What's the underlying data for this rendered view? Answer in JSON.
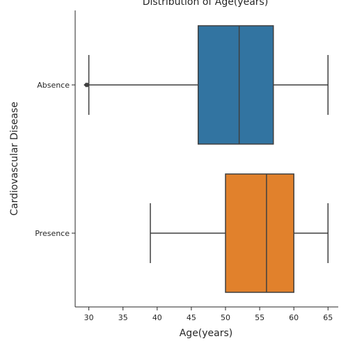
{
  "chart_data": {
    "type": "boxplot",
    "orientation": "horizontal",
    "title": "Distribution of Age(years)",
    "xlabel": "Age(years)",
    "ylabel": "Cardiovascular Disease",
    "xlim": [
      28,
      66.5
    ],
    "xticks": [
      30,
      35,
      40,
      45,
      50,
      55,
      60,
      65
    ],
    "grid": false,
    "categories": [
      "Absence",
      "Presence"
    ],
    "boxes": [
      {
        "category": "Absence",
        "color": "#3274a1",
        "whisker_low": 30,
        "q1": 46,
        "median": 52,
        "q3": 57,
        "whisker_high": 65,
        "outliers": [
          29.6,
          29.8
        ]
      },
      {
        "category": "Presence",
        "color": "#e1812c",
        "whisker_low": 39,
        "q1": 50,
        "median": 56,
        "q3": 60,
        "whisker_high": 65,
        "outliers": []
      }
    ]
  }
}
